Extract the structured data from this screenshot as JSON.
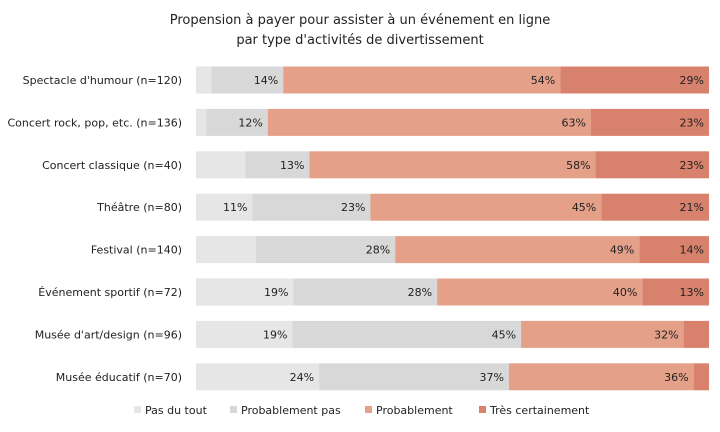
{
  "chart_data": {
    "type": "bar",
    "orientation": "horizontal",
    "stacked": true,
    "percent_stacked": true,
    "title": "Propension à payer pour assister à un événement  en ligne",
    "subtitle": "par type d'activités de divertissement",
    "categories": [
      "Spectacle d'humour  (n=120)",
      "Concert rock, pop, etc. (n=136)",
      "Concert classique (n=40)",
      "Théâtre  (n=80)",
      "Festival (n=140)",
      "Événement sportif  (n=72)",
      "Musée d'art/design  (n=96)",
      "Musée éducatif (n=70)"
    ],
    "series": [
      {
        "name": "Pas du tout",
        "color": "#e6e6e6",
        "values": [
          3,
          2,
          10,
          11,
          12,
          19,
          19,
          24
        ]
      },
      {
        "name": "Probablement pas",
        "color": "#d8d8d8",
        "values": [
          14,
          12,
          13,
          23,
          28,
          28,
          45,
          37
        ]
      },
      {
        "name": "Probablement",
        "color": "#e5a08a",
        "values": [
          54,
          63,
          58,
          45,
          49,
          40,
          32,
          36
        ]
      },
      {
        "name": "Très certainement",
        "color": "#d8826d",
        "values": [
          29,
          23,
          23,
          21,
          14,
          13,
          5,
          3
        ]
      }
    ],
    "data_labels": [
      [
        "",
        "14%",
        "54%",
        "29%"
      ],
      [
        "",
        "12%",
        "63%",
        "23%"
      ],
      [
        "",
        "13%",
        "58%",
        "23%"
      ],
      [
        "11%",
        "23%",
        "45%",
        "21%"
      ],
      [
        "",
        "28%",
        "49%",
        "14%"
      ],
      [
        "19%",
        "28%",
        "40%",
        "13%"
      ],
      [
        "19%",
        "45%",
        "32%",
        ""
      ],
      [
        "24%",
        "37%",
        "36%",
        ""
      ]
    ],
    "xlim": [
      0,
      100
    ],
    "grid": false,
    "legend_position": "bottom"
  }
}
